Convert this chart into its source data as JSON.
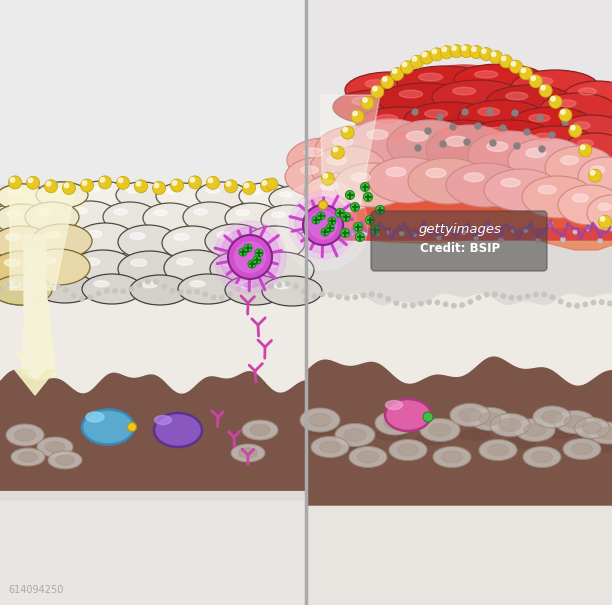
{
  "colors": {
    "bg_light": "#dcdcdc",
    "bg_top": "#e8e8e8",
    "bg_very_top": "#efefef",
    "skin_cell_light": "#f0ede8",
    "skin_cell_mid": "#e8e4de",
    "skin_cell_dark": "#ddd9d2",
    "skin_cell_outline": "#5a5248",
    "epidermis_bg": "#e8e4de",
    "dermis_bg": "#eeecea",
    "blood_layer": "#7a5548",
    "blood_layer2": "#6b4840",
    "subdermis": "#e8e5e0",
    "yellow_allergen": "#e8c820",
    "yellow_dot_dark": "#c8a800",
    "beam_color": "#f5f2d8",
    "arrow_color": "#f0edd0",
    "dendritic_purple": "#cc44cc",
    "dendritic_dark": "#882288",
    "green_antigen": "#44bb44",
    "green_dark": "#228822",
    "antibody_pink": "#cc44aa",
    "blue_cell": "#5aaad0",
    "blue_cell_light": "#90d0f0",
    "purple_cell": "#8858c0",
    "purple_cell_light": "#b888f0",
    "pink_lymph": "#e060a8",
    "pink_lymph_light": "#f098c8",
    "rbc_color": "#c0b8b4",
    "rbc_dark": "#a09088",
    "rbc_outline": "#9a8878",
    "inflamed_red_top": "#cc2222",
    "inflamed_red_mid": "#dd4444",
    "inflamed_orange": "#e87744",
    "inflamed_pink_outer": "#e8a090",
    "inflamed_pink_light": "#f0c0b8",
    "inflamed_cell_outline": "#993333",
    "inflamed_cell_dark": "#882222",
    "gray_dot": "#8a8880",
    "wavy_border": "#888880",
    "purple_jagged": "#9944aa",
    "divider": "#aaaaaa",
    "wm_bg": "#555555",
    "wm_text": "#ffffff",
    "id_text": "#aaaaaa"
  }
}
